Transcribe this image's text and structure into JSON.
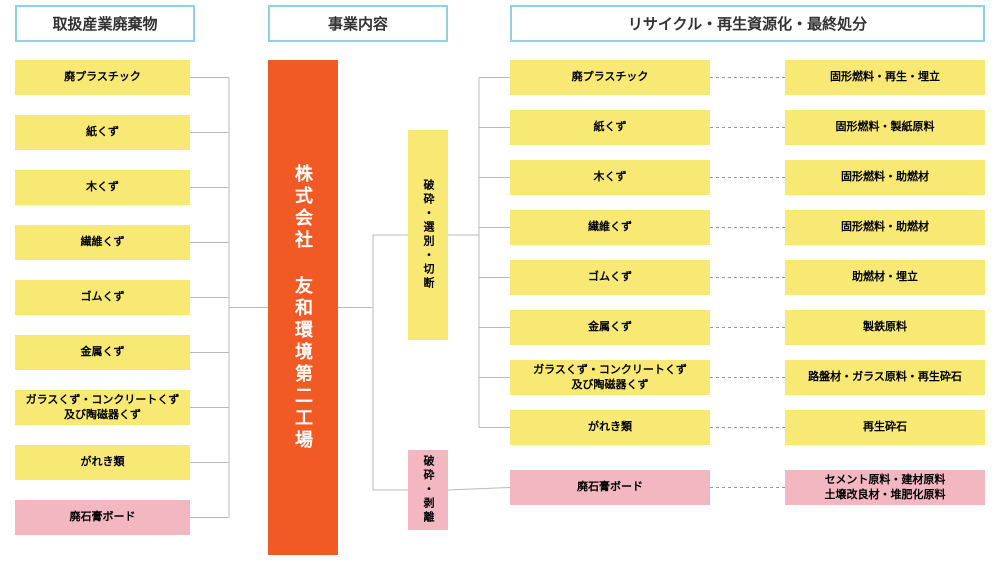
{
  "headers": {
    "h1": "取扱産業廃棄物",
    "h2": "事業内容",
    "h3": "リサイクル・再生資源化・最終処分"
  },
  "company": "株式会社 友和環境第二工場",
  "processes": {
    "p1": "破砕・選別・切断",
    "p2": "破砕・剥離"
  },
  "leftItems": [
    {
      "label": "廃プラスチック",
      "color": "yellow"
    },
    {
      "label": "紙くず",
      "color": "yellow"
    },
    {
      "label": "木くず",
      "color": "yellow"
    },
    {
      "label": "繊維くず",
      "color": "yellow"
    },
    {
      "label": "ゴムくず",
      "color": "yellow"
    },
    {
      "label": "金属くず",
      "color": "yellow"
    },
    {
      "label": "ガラスくず・コンクリートくず\n及び陶磁器くず",
      "color": "yellow"
    },
    {
      "label": "がれき類",
      "color": "yellow"
    },
    {
      "label": "廃石膏ボード",
      "color": "pink"
    }
  ],
  "midItems": [
    {
      "label": "廃プラスチック",
      "color": "yellow"
    },
    {
      "label": "紙くず",
      "color": "yellow"
    },
    {
      "label": "木くず",
      "color": "yellow"
    },
    {
      "label": "繊維くず",
      "color": "yellow"
    },
    {
      "label": "ゴムくず",
      "color": "yellow"
    },
    {
      "label": "金属くず",
      "color": "yellow"
    },
    {
      "label": "ガラスくず・コンクリートくず\n及び陶磁器くず",
      "color": "yellow"
    },
    {
      "label": "がれき類",
      "color": "yellow"
    },
    {
      "label": "廃石膏ボード",
      "color": "pink"
    }
  ],
  "rightItems": [
    {
      "label": "固形燃料・再生・埋立",
      "color": "yellow"
    },
    {
      "label": "固形燃料・製紙原料",
      "color": "yellow"
    },
    {
      "label": "固形燃料・助燃材",
      "color": "yellow"
    },
    {
      "label": "固形燃料・助燃材",
      "color": "yellow"
    },
    {
      "label": "助燃材・埋立",
      "color": "yellow"
    },
    {
      "label": "製鉄原料",
      "color": "yellow"
    },
    {
      "label": "路盤材・ガラス原料・再生砕石",
      "color": "yellow"
    },
    {
      "label": "再生砕石",
      "color": "yellow"
    },
    {
      "label": "セメント原料・建材原料\n土壌改良材・堆肥化原料",
      "color": "pink"
    }
  ],
  "layout": {
    "leftX": 15,
    "leftW": 175,
    "leftStartY": 60,
    "leftStepY": 55,
    "leftH": 35,
    "midX": 510,
    "midW": 200,
    "midH": 35,
    "rightX": 785,
    "rightW": 200,
    "rightH": 35,
    "midYellowStartY": 60,
    "midYellowStepY": 50,
    "midPinkY": 470,
    "colors": {
      "yellow": "#f8e874",
      "pink": "#f3b7c2",
      "orange": "#f15a24",
      "header": "#8dd3e0",
      "line": "#bbb",
      "dotted": "#999"
    }
  }
}
